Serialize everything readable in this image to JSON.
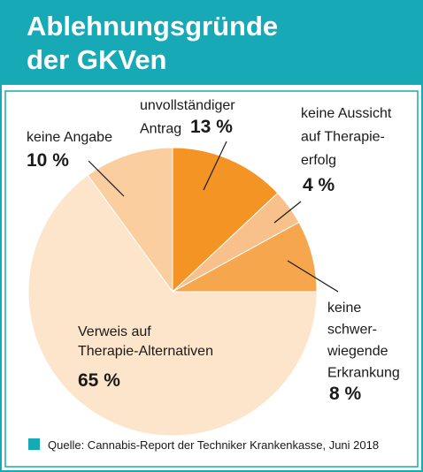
{
  "chart_data": {
    "type": "pie",
    "title": "Ablehnungsgründe\nder GKVen",
    "categories": [
      "unvollständiger\nAntrag",
      "keine Aussicht\nauf Therapie-\nerfolg",
      "keine\nschwer-\nwiegende\nErkrankung",
      "Verweis auf\nTherapie-Alternativen",
      "keine Angabe"
    ],
    "values": [
      13,
      4,
      8,
      65,
      10
    ],
    "value_labels": [
      "13 %",
      "4 %",
      "8 %",
      "65 %",
      "10 %"
    ],
    "colors": [
      "#f39425",
      "#f8c18c",
      "#f6a64d",
      "#fde5cb",
      "#fbce9f"
    ],
    "source": "Quelle: Cannabis-Report der Techniker Krankenkasse, Juni 2018",
    "source_color": "#17a9b6"
  }
}
